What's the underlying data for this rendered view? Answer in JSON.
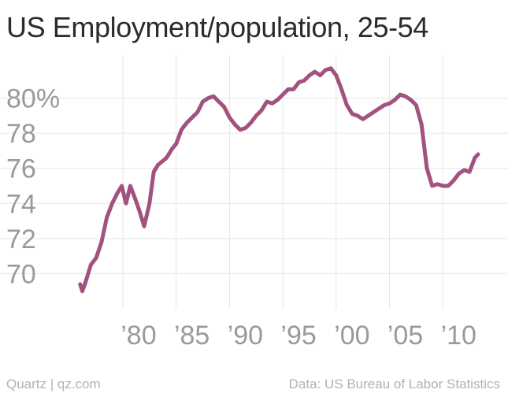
{
  "chart_data": {
    "type": "line",
    "title": "US Employment/population, 25-54",
    "xlabel": "",
    "ylabel": "",
    "xlim": [
      1975.5,
      2015.0
    ],
    "ylim": [
      68.0,
      82.0
    ],
    "x_ticks": [
      1980,
      1985,
      1990,
      1995,
      2000,
      2005,
      2010
    ],
    "x_tick_labels": [
      "’80",
      "’85",
      "’90",
      "’95",
      "’00",
      "’05",
      "’10"
    ],
    "y_ticks": [
      70,
      72,
      74,
      76,
      78,
      80
    ],
    "y_tick_labels": [
      "70",
      "72",
      "74",
      "76",
      "78",
      "80%"
    ],
    "grid": true,
    "series": [
      {
        "color": "#a2527f",
        "x": [
          1976.0,
          1976.2,
          1976.5,
          1977.0,
          1977.5,
          1978.0,
          1978.5,
          1979.0,
          1979.5,
          1979.9,
          1980.3,
          1980.7,
          1981.2,
          1981.6,
          1982.0,
          1982.5,
          1982.9,
          1983.3,
          1983.7,
          1984.1,
          1984.6,
          1985.0,
          1985.5,
          1986.0,
          1986.5,
          1987.0,
          1987.5,
          1988.0,
          1988.5,
          1989.0,
          1989.5,
          1990.0,
          1990.5,
          1991.0,
          1991.5,
          1992.0,
          1992.5,
          1993.0,
          1993.5,
          1994.0,
          1994.5,
          1995.0,
          1995.5,
          1996.0,
          1996.5,
          1997.0,
          1997.5,
          1998.0,
          1998.5,
          1999.0,
          1999.5,
          2000.0,
          2000.5,
          2001.0,
          2001.5,
          2002.0,
          2002.5,
          2003.0,
          2003.5,
          2004.0,
          2004.5,
          2005.0,
          2005.5,
          2006.0,
          2006.5,
          2007.0,
          2007.5,
          2008.0,
          2008.5,
          2009.0,
          2009.5,
          2010.0,
          2010.5,
          2011.0,
          2011.5,
          2012.0,
          2012.5,
          2013.0,
          2013.3
        ],
        "y": [
          69.4,
          69.0,
          69.5,
          70.5,
          70.9,
          71.8,
          73.2,
          74.0,
          74.6,
          75.0,
          74.0,
          75.0,
          74.2,
          73.5,
          72.7,
          74.0,
          75.8,
          76.2,
          76.4,
          76.6,
          77.1,
          77.4,
          78.2,
          78.6,
          78.9,
          79.2,
          79.8,
          80.0,
          80.1,
          79.8,
          79.5,
          78.9,
          78.5,
          78.2,
          78.3,
          78.6,
          79.0,
          79.3,
          79.8,
          79.7,
          79.9,
          80.2,
          80.5,
          80.5,
          80.9,
          81.0,
          81.3,
          81.5,
          81.3,
          81.6,
          81.7,
          81.3,
          80.5,
          79.6,
          79.1,
          79.0,
          78.8,
          79.0,
          79.2,
          79.4,
          79.6,
          79.7,
          79.9,
          80.2,
          80.1,
          79.9,
          79.6,
          78.5,
          76.0,
          75.0,
          75.1,
          75.0,
          75.0,
          75.3,
          75.7,
          75.9,
          75.8,
          76.6,
          76.8
        ]
      }
    ]
  },
  "footer": {
    "source_left": "Quartz | qz.com",
    "source_right": "Data: US Bureau of Labor Statistics"
  }
}
